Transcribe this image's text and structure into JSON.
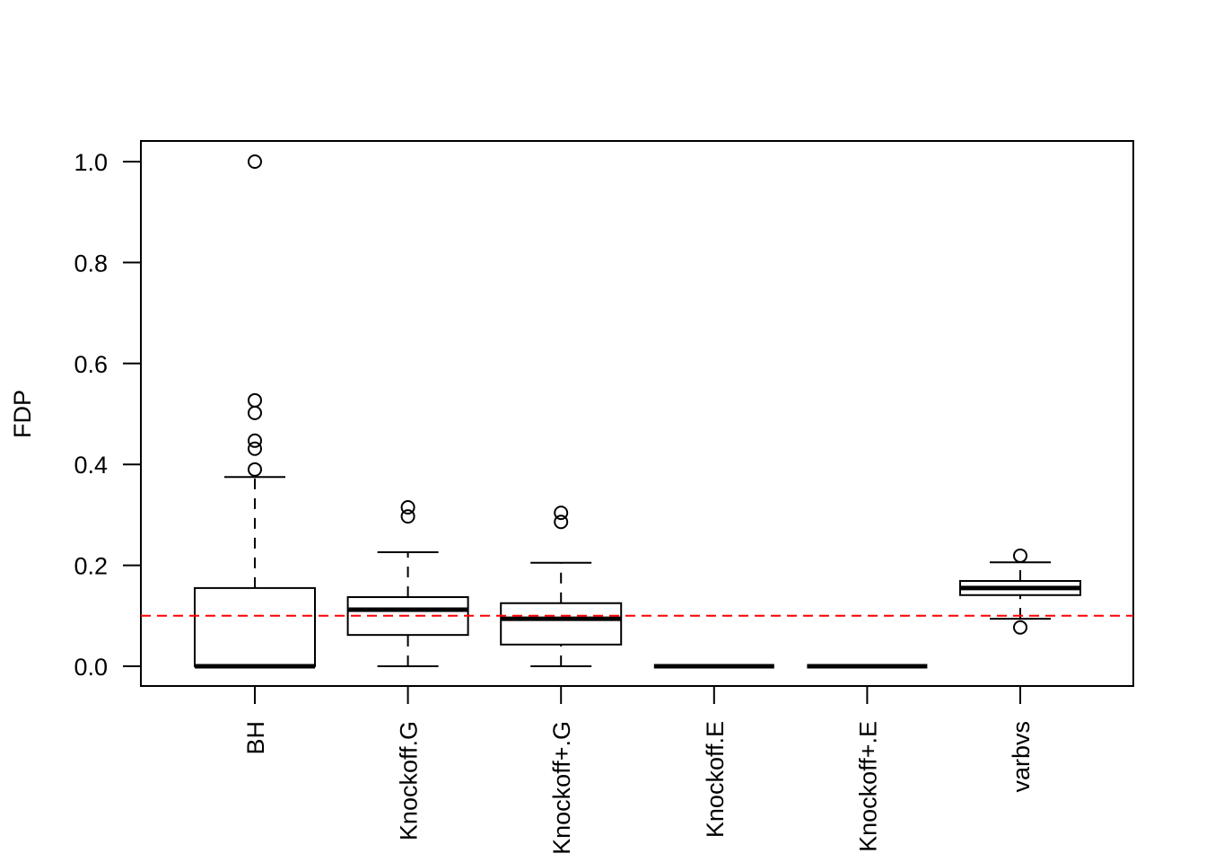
{
  "chart_data": {
    "type": "boxplot",
    "title": "",
    "xlabel": "",
    "ylabel": "FDP",
    "ylim": [
      -0.04,
      1.04
    ],
    "yticks": [
      0.0,
      0.2,
      0.4,
      0.6,
      0.8,
      1.0
    ],
    "ytick_labels": [
      "0.0",
      "0.2",
      "0.4",
      "0.6",
      "0.8",
      "1.0"
    ],
    "reference_line": {
      "y": 0.1,
      "color": "#ff0000",
      "style": "dashed"
    },
    "grid": false,
    "categories": [
      "BH",
      "Knockoff.G",
      "Knockoff+.G",
      "Knockoff.E",
      "Knockoff+.E",
      "varbvs"
    ],
    "boxes": [
      {
        "name": "BH",
        "whisker_low": 0.0,
        "q1": 0.0,
        "median": 0.0,
        "q3": 0.155,
        "whisker_high": 0.375,
        "outliers": [
          0.39,
          0.431,
          0.447,
          0.502,
          0.527,
          1.0
        ]
      },
      {
        "name": "Knockoff.G",
        "whisker_low": 0.0,
        "q1": 0.062,
        "median": 0.112,
        "q3": 0.137,
        "whisker_high": 0.226,
        "outliers": [
          0.297,
          0.315
        ]
      },
      {
        "name": "Knockoff+.G",
        "whisker_low": 0.0,
        "q1": 0.043,
        "median": 0.094,
        "q3": 0.125,
        "whisker_high": 0.205,
        "outliers": [
          0.286,
          0.304
        ]
      },
      {
        "name": "Knockoff.E",
        "whisker_low": 0.0,
        "q1": 0.0,
        "median": 0.0,
        "q3": 0.0,
        "whisker_high": 0.0,
        "outliers": []
      },
      {
        "name": "Knockoff+.E",
        "whisker_low": 0.0,
        "q1": 0.0,
        "median": 0.0,
        "q3": 0.0,
        "whisker_high": 0.0,
        "outliers": []
      },
      {
        "name": "varbvs",
        "whisker_low": 0.094,
        "q1": 0.141,
        "median": 0.155,
        "q3": 0.169,
        "whisker_high": 0.206,
        "outliers": [
          0.077,
          0.219
        ]
      }
    ]
  }
}
